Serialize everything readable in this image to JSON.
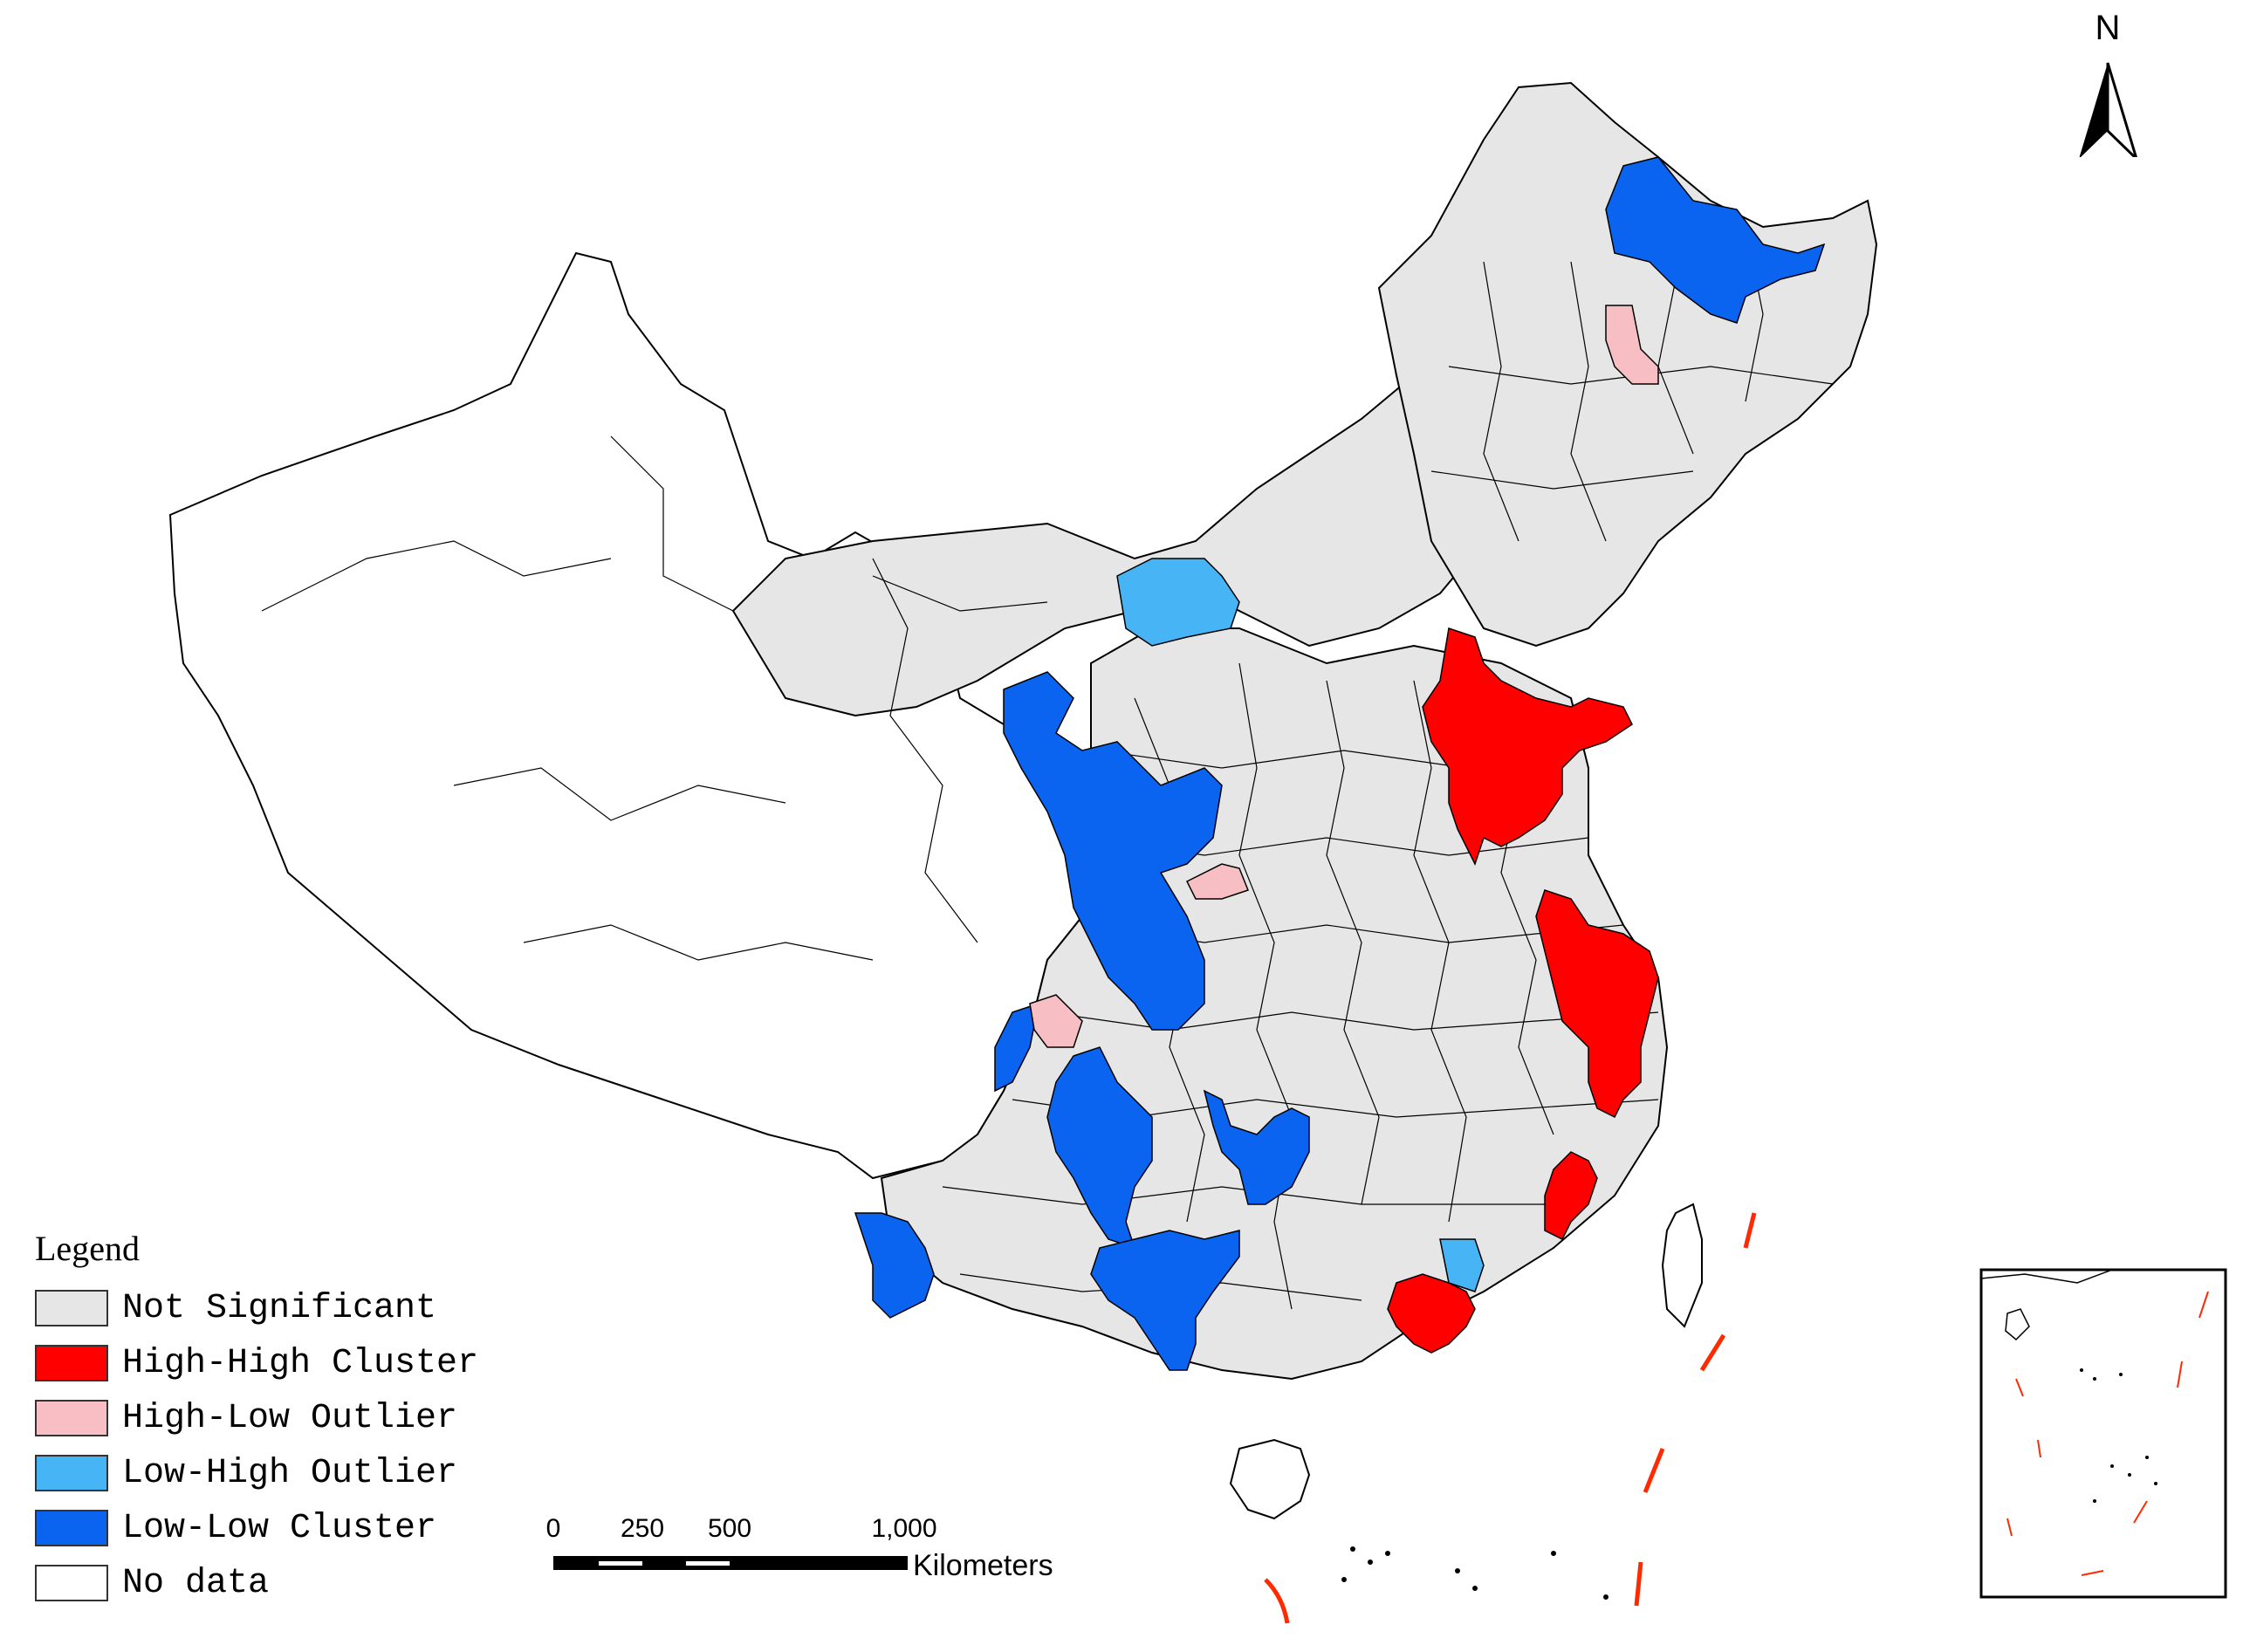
{
  "map": {
    "north_label": "N",
    "colors": {
      "not_significant": "#e6e6e6",
      "high_high": "#ff0000",
      "high_low": "#f7bfc4",
      "low_high": "#46b4f5",
      "low_low": "#0a64f0",
      "no_data": "#ffffff",
      "boundary": "#000000",
      "island_lines": "#ff2a00"
    },
    "legend": {
      "title": "Legend",
      "items": [
        {
          "label": "Not Significant",
          "color": "#e6e6e6"
        },
        {
          "label": "High-High Cluster",
          "color": "#ff0000"
        },
        {
          "label": "High-Low Outlier",
          "color": "#f7bfc4"
        },
        {
          "label": "Low-High Outlier",
          "color": "#46b4f5"
        },
        {
          "label": "Low-Low Cluster",
          "color": "#0a64f0"
        },
        {
          "label": "No data",
          "color": "#ffffff"
        }
      ]
    },
    "scale_bar": {
      "ticks": [
        "0",
        "250",
        "500",
        "1,000"
      ],
      "unit": "Kilometers"
    }
  }
}
